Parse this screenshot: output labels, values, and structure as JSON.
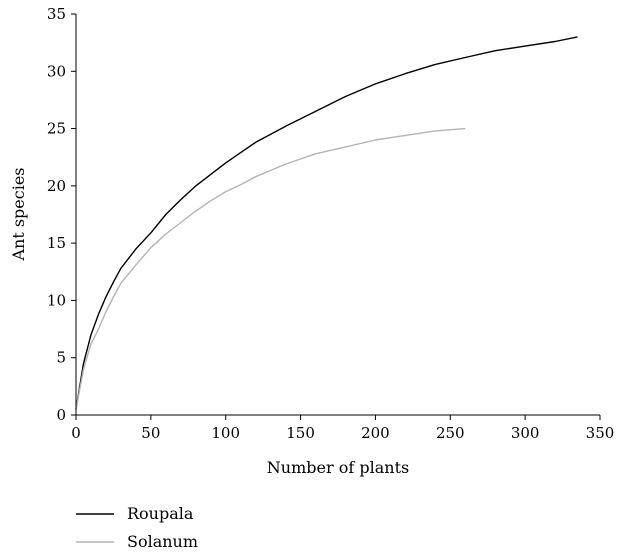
{
  "chart_data": {
    "type": "line",
    "title": "",
    "xlabel": "Number of plants",
    "ylabel": "Ant species",
    "xlim": [
      0,
      350
    ],
    "ylim": [
      0,
      35
    ],
    "x_ticks": [
      0,
      50,
      100,
      150,
      200,
      250,
      300,
      350
    ],
    "y_ticks": [
      0,
      5,
      10,
      15,
      20,
      25,
      30,
      35
    ],
    "grid": false,
    "legend_position": "bottom-left",
    "series": [
      {
        "name": "Roupala",
        "color": "#000000",
        "x": [
          0,
          5,
          10,
          15,
          20,
          25,
          30,
          40,
          50,
          60,
          70,
          80,
          90,
          100,
          110,
          120,
          140,
          160,
          180,
          200,
          220,
          240,
          260,
          280,
          300,
          320,
          335
        ],
        "y": [
          0.5,
          4.5,
          7,
          8.8,
          10.3,
          11.6,
          12.8,
          14.5,
          15.9,
          17.5,
          18.8,
          20,
          21,
          22,
          22.9,
          23.8,
          25.2,
          26.5,
          27.8,
          28.9,
          29.8,
          30.6,
          31.2,
          31.8,
          32.2,
          32.6,
          33
        ]
      },
      {
        "name": "Solanum",
        "color": "#b4b4b4",
        "x": [
          0,
          5,
          10,
          15,
          20,
          25,
          30,
          40,
          50,
          60,
          70,
          80,
          90,
          100,
          110,
          120,
          140,
          160,
          180,
          200,
          220,
          240,
          260
        ],
        "y": [
          0.5,
          4,
          6.2,
          7.5,
          9,
          10.3,
          11.5,
          13.1,
          14.6,
          15.8,
          16.8,
          17.8,
          18.7,
          19.5,
          20.1,
          20.8,
          21.9,
          22.8,
          23.4,
          24,
          24.4,
          24.8,
          25
        ]
      }
    ]
  }
}
